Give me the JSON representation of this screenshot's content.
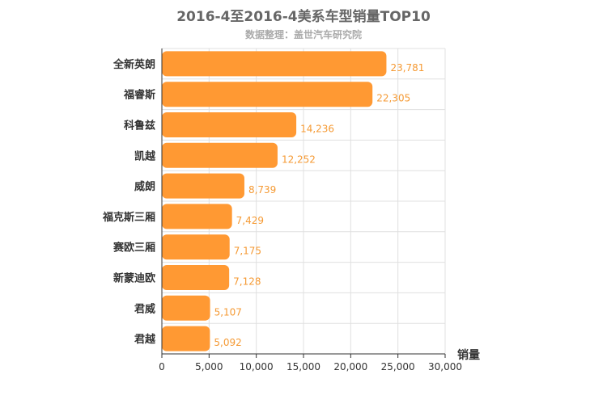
{
  "chart_data": {
    "type": "bar",
    "orientation": "horizontal",
    "title": "2016-4至2016-4美系车型销量TOP10",
    "subtitle": "数据整理：盖世汽车研究院",
    "xlabel": "销量",
    "ylabel": "",
    "xlim": [
      0,
      30000
    ],
    "x_ticks": [
      0,
      5000,
      10000,
      15000,
      20000,
      25000,
      30000
    ],
    "x_tick_labels": [
      "0",
      "5,000",
      "10,000",
      "15,000",
      "20,000",
      "25,000",
      "30,000"
    ],
    "grid": true,
    "bar_color": "#ff9933",
    "categories": [
      "全新英朗",
      "福睿斯",
      "科鲁兹",
      "凯越",
      "威朗",
      "福克斯三厢",
      "赛欧三厢",
      "新蒙迪欧",
      "君威",
      "君越"
    ],
    "values": [
      23781,
      22305,
      14236,
      12252,
      8739,
      7429,
      7175,
      7128,
      5107,
      5092
    ],
    "value_labels": [
      "23,781",
      "22,305",
      "14,236",
      "12,252",
      "8,739",
      "7,429",
      "7,175",
      "7,128",
      "5,107",
      "5,092"
    ]
  }
}
